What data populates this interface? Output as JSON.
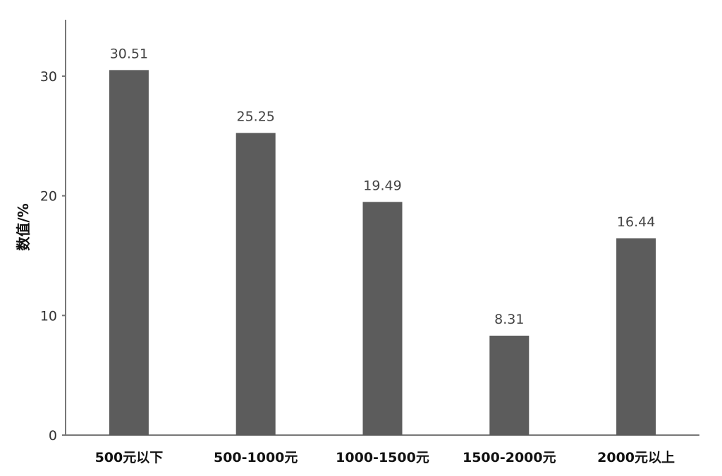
{
  "chart_data": {
    "type": "bar",
    "categories": [
      "500元以下",
      "500-1000元",
      "1000-1500元",
      "1500-2000元",
      "2000元以上"
    ],
    "values": [
      30.51,
      25.25,
      19.49,
      8.31,
      16.44
    ],
    "data_labels": [
      "30.51",
      "25.25",
      "19.49",
      "8.31",
      "16.44"
    ],
    "title": "",
    "xlabel": "",
    "ylabel": "数值/%",
    "ylim": [
      0,
      35
    ],
    "yticks": [
      0,
      10,
      20,
      30
    ],
    "grid": false,
    "legend": "none",
    "bar_color": "#5c5c5c"
  }
}
